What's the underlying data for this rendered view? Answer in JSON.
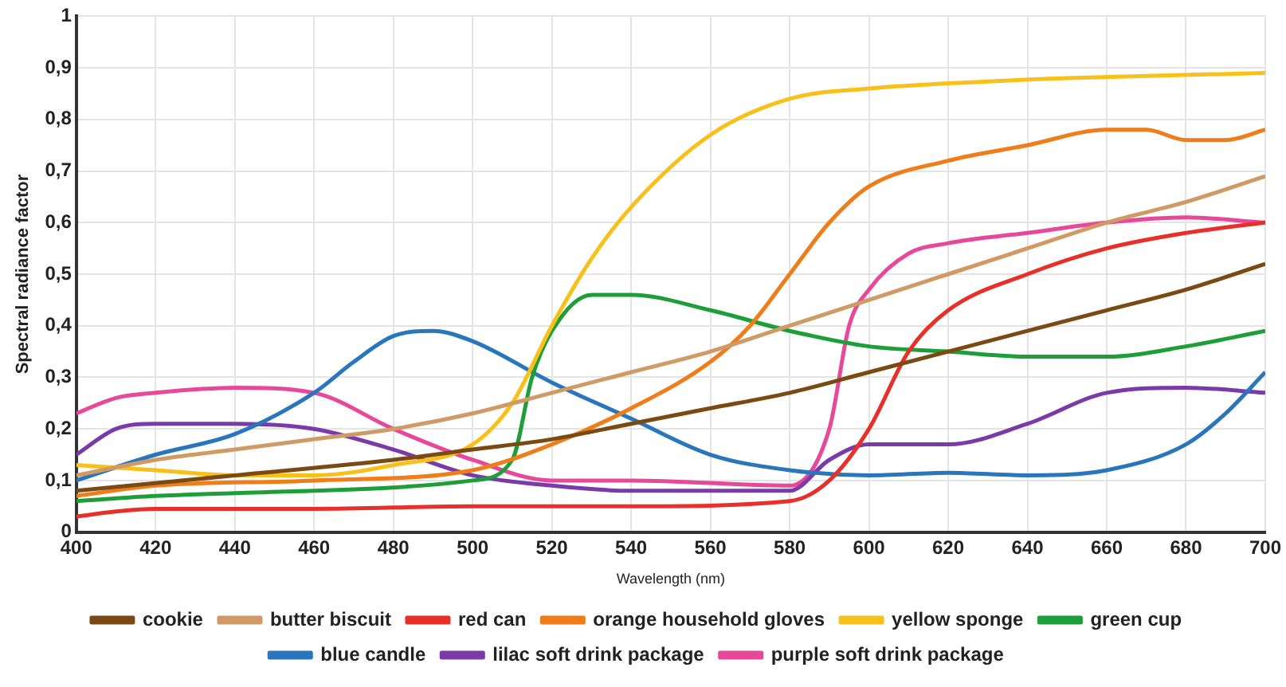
{
  "chart_data": {
    "type": "line",
    "xlabel": "Wavelength (nm)",
    "ylabel": "Spectral radiance factor",
    "xlim": [
      400,
      700
    ],
    "xticks": [
      400,
      420,
      440,
      460,
      480,
      500,
      520,
      540,
      560,
      580,
      600,
      620,
      640,
      660,
      680,
      700
    ],
    "ylim": [
      0,
      1
    ],
    "yticks": [
      0,
      {
        "value": 0.1,
        "label": "0,1"
      },
      {
        "value": 0.2,
        "label": "0,2"
      },
      {
        "value": 0.3,
        "label": "0,3"
      },
      {
        "value": 0.4,
        "label": "0,4"
      },
      {
        "value": 0.5,
        "label": "0,5"
      },
      {
        "value": 0.6,
        "label": "0,6"
      },
      {
        "value": 0.7,
        "label": "0,7"
      },
      {
        "value": 0.8,
        "label": "0,8"
      },
      {
        "value": 0.9,
        "label": "0,9"
      },
      1
    ],
    "grid": true,
    "legend": "bottom",
    "marker": "none",
    "line_style": "solid",
    "series": [
      {
        "name": "cookie",
        "color": "#7b4a12",
        "x": [
          400,
          440,
          480,
          500,
          520,
          540,
          560,
          580,
          600,
          620,
          640,
          660,
          680,
          700
        ],
        "values": [
          0.08,
          0.11,
          0.14,
          0.16,
          0.18,
          0.21,
          0.24,
          0.27,
          0.31,
          0.35,
          0.39,
          0.43,
          0.47,
          0.52
        ]
      },
      {
        "name": "butter biscuit",
        "color": "#d09a64",
        "x": [
          400,
          420,
          440,
          460,
          480,
          500,
          520,
          540,
          560,
          580,
          600,
          620,
          640,
          660,
          680,
          700
        ],
        "values": [
          0.11,
          0.14,
          0.16,
          0.18,
          0.2,
          0.23,
          0.27,
          0.31,
          0.35,
          0.4,
          0.45,
          0.5,
          0.55,
          0.6,
          0.64,
          0.69
        ]
      },
      {
        "name": "red can",
        "color": "#e8302a",
        "x": [
          400,
          410,
          420,
          460,
          500,
          540,
          580,
          590,
          600,
          610,
          620,
          640,
          660,
          680,
          700
        ],
        "values": [
          0.03,
          0.04,
          0.045,
          0.045,
          0.05,
          0.05,
          0.06,
          0.1,
          0.2,
          0.35,
          0.43,
          0.5,
          0.55,
          0.58,
          0.6
        ]
      },
      {
        "name": "orange household gloves",
        "color": "#ee7d1a",
        "x": [
          400,
          420,
          460,
          500,
          520,
          540,
          560,
          570,
          580,
          590,
          600,
          620,
          640,
          660,
          670,
          680,
          690,
          700
        ],
        "values": [
          0.07,
          0.09,
          0.1,
          0.12,
          0.17,
          0.24,
          0.33,
          0.4,
          0.5,
          0.6,
          0.67,
          0.72,
          0.75,
          0.78,
          0.78,
          0.76,
          0.76,
          0.78
        ]
      },
      {
        "name": "yellow sponge",
        "color": "#f8c01a",
        "x": [
          400,
          420,
          440,
          460,
          480,
          500,
          510,
          520,
          530,
          540,
          560,
          580,
          600,
          620,
          650,
          700
        ],
        "values": [
          0.13,
          0.12,
          0.11,
          0.11,
          0.13,
          0.17,
          0.25,
          0.4,
          0.53,
          0.63,
          0.77,
          0.84,
          0.86,
          0.87,
          0.88,
          0.89
        ]
      },
      {
        "name": "green cup",
        "color": "#1e9e38",
        "x": [
          400,
          420,
          460,
          500,
          510,
          515,
          520,
          530,
          540,
          560,
          580,
          600,
          620,
          640,
          660,
          680,
          700
        ],
        "values": [
          0.06,
          0.07,
          0.08,
          0.1,
          0.14,
          0.3,
          0.39,
          0.46,
          0.46,
          0.43,
          0.39,
          0.36,
          0.35,
          0.34,
          0.34,
          0.36,
          0.39
        ]
      },
      {
        "name": "blue candle",
        "color": "#2a76bd",
        "x": [
          400,
          420,
          440,
          460,
          470,
          480,
          490,
          500,
          520,
          540,
          560,
          580,
          600,
          620,
          640,
          660,
          680,
          690,
          700
        ],
        "values": [
          0.1,
          0.15,
          0.19,
          0.27,
          0.33,
          0.38,
          0.39,
          0.37,
          0.29,
          0.22,
          0.15,
          0.12,
          0.11,
          0.115,
          0.11,
          0.12,
          0.17,
          0.23,
          0.31
        ]
      },
      {
        "name": "lilac soft drink package",
        "color": "#7a3aa8",
        "x": [
          400,
          410,
          420,
          440,
          460,
          480,
          500,
          520,
          540,
          580,
          590,
          600,
          620,
          640,
          660,
          680,
          700
        ],
        "values": [
          0.15,
          0.2,
          0.21,
          0.21,
          0.2,
          0.16,
          0.11,
          0.09,
          0.08,
          0.08,
          0.14,
          0.17,
          0.17,
          0.21,
          0.27,
          0.28,
          0.27
        ]
      },
      {
        "name": "purple soft drink package",
        "color": "#e8489a",
        "x": [
          400,
          410,
          420,
          440,
          460,
          480,
          500,
          520,
          540,
          580,
          590,
          595,
          600,
          610,
          620,
          640,
          660,
          680,
          700
        ],
        "values": [
          0.23,
          0.26,
          0.27,
          0.28,
          0.27,
          0.2,
          0.14,
          0.1,
          0.1,
          0.09,
          0.2,
          0.4,
          0.47,
          0.54,
          0.56,
          0.58,
          0.6,
          0.61,
          0.6
        ]
      }
    ]
  }
}
